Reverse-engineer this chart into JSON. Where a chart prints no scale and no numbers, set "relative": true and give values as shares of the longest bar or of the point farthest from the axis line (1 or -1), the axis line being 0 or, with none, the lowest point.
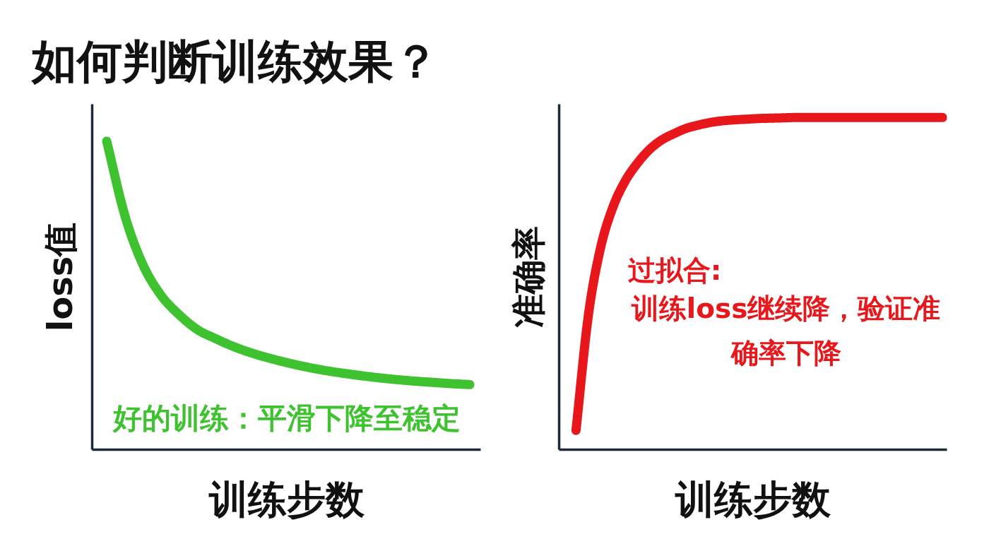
{
  "chart_data": [
    {
      "type": "line",
      "title": "如何判断训练效果？",
      "xlabel": "训练步数",
      "ylabel": "loss值",
      "relative": true,
      "categories": [
        null,
        null,
        null,
        null,
        null,
        null,
        null,
        null,
        null,
        null,
        null,
        null,
        null,
        null,
        null,
        null,
        null,
        null,
        null,
        null,
        null
      ],
      "series": [
        {
          "color": "#3ec22f",
          "values": [
            1.0,
            0.759,
            0.599,
            0.5,
            0.437,
            0.389,
            0.36,
            0.334,
            0.313,
            0.296,
            0.281,
            0.268,
            0.257,
            0.248,
            0.24,
            0.233,
            0.227,
            0.222,
            0.218,
            0.214,
            0.211
          ]
        }
      ],
      "annotations": [
        "好的训练：平滑下降至稳定"
      ]
    },
    {
      "type": "line",
      "xlabel": "训练步数",
      "ylabel": "准确率",
      "relative": true,
      "categories": [
        null,
        null,
        null,
        null,
        null,
        null,
        null,
        null,
        null,
        null,
        null,
        null,
        null,
        null,
        null,
        null,
        null,
        null,
        null,
        null,
        null,
        null,
        null,
        null,
        null,
        null,
        null,
        null,
        null,
        null,
        null
      ],
      "series": [
        {
          "color": "#e8171c",
          "values": [
            0.058,
            0.401,
            0.606,
            0.728,
            0.807,
            0.861,
            0.903,
            0.932,
            0.951,
            0.967,
            0.977,
            0.985,
            0.99,
            0.993,
            0.995,
            0.997,
            0.998,
            0.999,
            1.0,
            1.0,
            1.0,
            1.0,
            1.0,
            1.0,
            1.0,
            1.0,
            1.0,
            1.0,
            1.0,
            1.0,
            1.0
          ]
        }
      ],
      "annotations": [
        "过拟合:",
        "训练loss继续降，验证准确率下降"
      ]
    }
  ]
}
